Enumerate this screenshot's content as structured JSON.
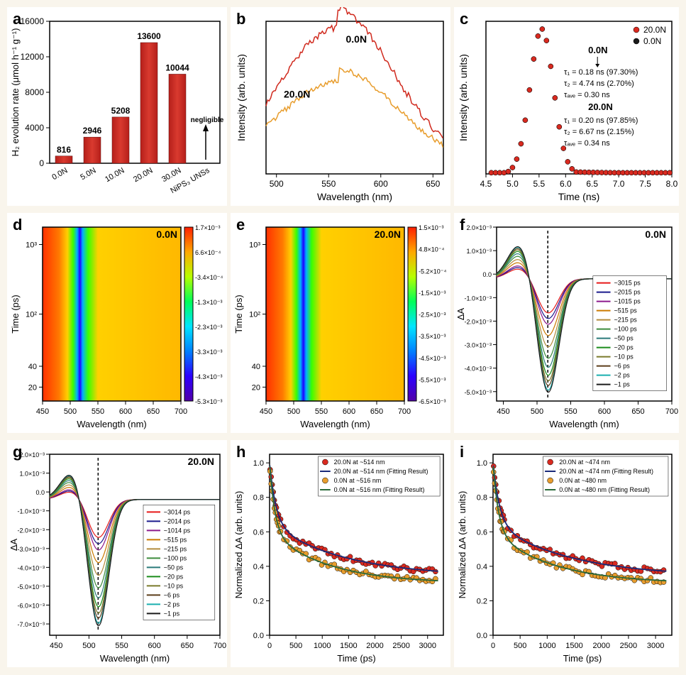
{
  "background_color": "#f9f5ec",
  "panel_bg": "#ffffff",
  "font_family": "Arial",
  "panel_a": {
    "label": "a",
    "type": "bar",
    "ylabel": "H₂ evolution rate (μmol h⁻¹ g⁻¹)",
    "categories": [
      "0.0N",
      "5.0N",
      "10.0N",
      "20.0N",
      "30.0N",
      "NiPS₃ UNSs"
    ],
    "values": [
      816,
      2946,
      5208,
      13600,
      10044,
      0
    ],
    "annotations": [
      "816",
      "2946",
      "5208",
      "13600",
      "10044",
      ""
    ],
    "negligible_label": "negligible",
    "bar_color": "#b51f1a",
    "bar_highlight": "#d93a2f",
    "ylim": [
      0,
      16000
    ],
    "ytick_step": 4000,
    "label_fontsize": 14,
    "tick_fontsize": 12
  },
  "panel_b": {
    "label": "b",
    "type": "line",
    "xlabel": "Wavelength (nm)",
    "ylabel": "Intensity (arb. units)",
    "xlim": [
      490,
      660
    ],
    "xtick_step": 50,
    "series": [
      {
        "name": "0.0N",
        "color": "#d02a1e",
        "peak_x": 558,
        "peak_y": 1.0,
        "width": 55
      },
      {
        "name": "20.0N",
        "color": "#e89d2d",
        "peak_x": 560,
        "peak_y": 0.62,
        "width": 58
      }
    ]
  },
  "panel_c": {
    "label": "c",
    "type": "scatter",
    "xlabel": "Time (ns)",
    "ylabel": "Intensity (arb. units)",
    "xlim": [
      4.5,
      8.0
    ],
    "xtick_step": 0.5,
    "series": [
      {
        "name": "20.0N",
        "color": "#d92a20",
        "marker": "circle"
      },
      {
        "name": "0.0N",
        "color": "#1a1a1a",
        "marker": "circle"
      }
    ],
    "peak_x": 5.55,
    "annotations": {
      "t0_title": "0.0N",
      "t0_lines": [
        "τ₁ = 0.18 ns (97.30%)",
        "τ₂ = 4.74 ns (2.70%)",
        "τₐᵥₑ = 0.30 ns"
      ],
      "t20_title": "20.0N",
      "t20_lines": [
        "τ₁ = 0.20 ns (97.85%)",
        "τ₂ = 6.67 ns (2.15%)",
        "τₐᵥₑ = 0.34 ns"
      ]
    }
  },
  "panel_d": {
    "label": "d",
    "type": "heatmap",
    "title": "0.0N",
    "xlabel": "Wavelength (nm)",
    "ylabel": "Time (ps)",
    "xlim": [
      450,
      700
    ],
    "xtick_step": 50,
    "yscale": "log_combined",
    "colorbar": {
      "values": [
        "1.7×10⁻³",
        "6.6×10⁻⁴",
        "-3.4×10⁻⁴",
        "-1.3×10⁻³",
        "-2.3×10⁻³",
        "-3.3×10⁻³",
        "-4.3×10⁻³",
        "-5.3×10⁻³"
      ],
      "colors": [
        "#ff1e00",
        "#ffa800",
        "#b7ff00",
        "#00ff59",
        "#00e5ff",
        "#0080ff",
        "#2b00ff",
        "#5200a8"
      ]
    }
  },
  "panel_e": {
    "label": "e",
    "type": "heatmap",
    "title": "20.0N",
    "xlabel": "Wavelength (nm)",
    "ylabel": "Time (ps)",
    "xlim": [
      450,
      700
    ],
    "xtick_step": 50,
    "colorbar": {
      "values": [
        "1.5×10⁻³",
        "4.8×10⁻⁴",
        "-5.2×10⁻⁴",
        "-1.5×10⁻³",
        "-2.5×10⁻³",
        "-3.5×10⁻³",
        "-4.5×10⁻³",
        "-5.5×10⁻³",
        "-6.5×10⁻³"
      ],
      "colors": [
        "#ff1e00",
        "#ffa800",
        "#b7ff00",
        "#00ff59",
        "#00e5ff",
        "#0080ff",
        "#2b00ff",
        "#5200a8"
      ]
    }
  },
  "panel_f": {
    "label": "f",
    "type": "line",
    "title": "0.0N",
    "xlabel": "Wavelength (nm)",
    "ylabel": "ΔA",
    "xlim": [
      440,
      700
    ],
    "xtick_step": 50,
    "ylim": [
      -0.0052,
      0.0022
    ],
    "yticks": [
      "2.0×10⁻³",
      "1.0×10⁻³",
      "0.0",
      "-1.0×10⁻³",
      "-2.0×10⁻³",
      "-3.0×10⁻³",
      "-4.0×10⁻³",
      "-5.0×10⁻³"
    ],
    "dip_x": 516,
    "legend": [
      "~3015 ps",
      "~2015 ps",
      "~1015 ps",
      "~515 ps",
      "~215 ps",
      "~100 ps",
      "~50 ps",
      "~20 ps",
      "~10 ps",
      "~6 ps",
      "~2 ps",
      "~1 ps"
    ],
    "legend_colors": [
      "#e61919",
      "#1a1a8c",
      "#8c1a8c",
      "#cc7a00",
      "#b38c3d",
      "#3d8c3d",
      "#2a7a7a",
      "#1a8c1a",
      "#7a7a2a",
      "#5c3d1a",
      "#1aafaf",
      "#1a1a1a"
    ]
  },
  "panel_g": {
    "label": "g",
    "type": "line",
    "title": "20.0N",
    "xlabel": "Wavelength (nm)",
    "ylabel": "ΔA",
    "xlim": [
      440,
      700
    ],
    "xtick_step": 50,
    "ylim": [
      -0.0072,
      0.0024
    ],
    "yticks": [
      "2.0×10⁻³",
      "1.0×10⁻³",
      "0.0",
      "-1.0×10⁻³",
      "-2.0×10⁻³",
      "-3.0×10⁻³",
      "-4.0×10⁻³",
      "-5.0×10⁻³",
      "-6.0×10⁻³",
      "-7.0×10⁻³"
    ],
    "dip_x": 514,
    "legend": [
      "~3014 ps",
      "~2014 ps",
      "~1014 ps",
      "~515 ps",
      "~215 ps",
      "~100 ps",
      "~50 ps",
      "~20 ps",
      "~10 ps",
      "~6 ps",
      "~2 ps",
      "~1 ps"
    ],
    "legend_colors": [
      "#e61919",
      "#1a1a8c",
      "#8c1a8c",
      "#cc7a00",
      "#b38c3d",
      "#3d8c3d",
      "#2a7a7a",
      "#1a8c1a",
      "#7a7a2a",
      "#5c3d1a",
      "#1aafaf",
      "#1a1a1a"
    ]
  },
  "panel_h": {
    "label": "h",
    "type": "decay",
    "xlabel": "Time (ps)",
    "ylabel": "Normalized ΔA (arb. units)",
    "xlim": [
      0,
      3300
    ],
    "xtick_step": 500,
    "ylim": [
      0,
      1.05
    ],
    "ytick_step": 0.2,
    "series": [
      {
        "name": "20.0N at ~514 nm",
        "color": "#d92a20",
        "type": "scatter"
      },
      {
        "name": "20.0N at ~514 nm (Fitting Result)",
        "color": "#1a2a7a",
        "type": "line"
      },
      {
        "name": "0.0N at ~516 nm",
        "color": "#e89d2d",
        "type": "scatter"
      },
      {
        "name": "0.0N at ~516 nm (Fitting Result)",
        "color": "#2a6a3a",
        "type": "line"
      }
    ]
  },
  "panel_i": {
    "label": "i",
    "type": "decay",
    "xlabel": "Time (ps)",
    "ylabel": "Normalized ΔA (arb. units)",
    "xlim": [
      0,
      3300
    ],
    "xtick_step": 500,
    "ylim": [
      0,
      1.05
    ],
    "ytick_step": 0.2,
    "series": [
      {
        "name": "20.0N at ~474 nm",
        "color": "#d92a20",
        "type": "scatter"
      },
      {
        "name": "20.0N at ~474 nm (Fitting Result)",
        "color": "#1a2a7a",
        "type": "line"
      },
      {
        "name": "0.0N at ~480 nm",
        "color": "#e89d2d",
        "type": "scatter"
      },
      {
        "name": "0.0N at ~480 nm (Fitting Result)",
        "color": "#2a6a3a",
        "type": "line"
      }
    ]
  }
}
